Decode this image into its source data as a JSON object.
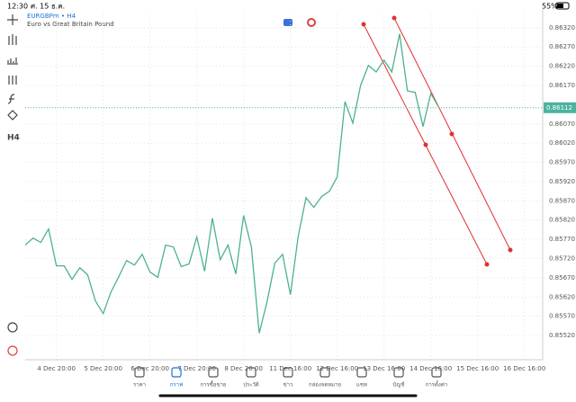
{
  "status_bar": {
    "time": "12:30",
    "date": "ศ. 15 ธ.ค.",
    "battery": "55%"
  },
  "header": {
    "symbol": "EURGBPm • H4",
    "description": "Euro vs Great Britain Pound"
  },
  "sidebar": {
    "timeframe": "H4"
  },
  "chart_data": {
    "type": "line",
    "color": "#4cb38a",
    "grid": true,
    "values": [
      0.85755,
      0.85773,
      0.85762,
      0.85797,
      0.85701,
      0.85701,
      0.85666,
      0.85696,
      0.85678,
      0.8561,
      0.85577,
      0.85633,
      0.85673,
      0.85715,
      0.85703,
      0.85731,
      0.85685,
      0.85671,
      0.85755,
      0.8575,
      0.85699,
      0.85706,
      0.85776,
      0.85687,
      0.85825,
      0.85717,
      0.85755,
      0.8568,
      0.85832,
      0.8575,
      0.85526,
      0.85607,
      0.85708,
      0.85731,
      0.85626,
      0.85778,
      0.85878,
      0.85853,
      0.85881,
      0.85895,
      0.85932,
      0.86128,
      0.86072,
      0.8617,
      0.86222,
      0.86205,
      0.86236,
      0.86205,
      0.86304,
      0.86156,
      0.86152,
      0.86063,
      0.86149,
      0.86114
    ],
    "ylim": [
      0.85457,
      0.86357
    ],
    "yticks": [
      {
        "value": 0.8632,
        "label": "0.86320"
      },
      {
        "value": 0.8627,
        "label": "0.86270"
      },
      {
        "value": 0.8622,
        "label": "0.86220"
      },
      {
        "value": 0.8617,
        "label": "0.86170"
      },
      {
        "value": 0.8607,
        "label": "0.86070"
      },
      {
        "value": 0.8602,
        "label": "0.86020"
      },
      {
        "value": 0.8597,
        "label": "0.85970"
      },
      {
        "value": 0.8592,
        "label": "0.85920"
      },
      {
        "value": 0.8587,
        "label": "0.85870"
      },
      {
        "value": 0.8582,
        "label": "0.85820"
      },
      {
        "value": 0.8577,
        "label": "0.85770"
      },
      {
        "value": 0.8572,
        "label": "0.85720"
      },
      {
        "value": 0.8567,
        "label": "0.85670"
      },
      {
        "value": 0.8562,
        "label": "0.85620"
      },
      {
        "value": 0.8557,
        "label": "0.85570"
      },
      {
        "value": 0.8552,
        "label": "0.85520"
      }
    ],
    "xlim": [
      0,
      66
    ],
    "xticks": [
      {
        "value": 4,
        "label": "4 Dec 20:00"
      },
      {
        "value": 10,
        "label": "5 Dec 20:00"
      },
      {
        "value": 16,
        "label": "6 Dec 20:00"
      },
      {
        "value": 22,
        "label": "7 Dec 20:00"
      },
      {
        "value": 28,
        "label": "8 Dec 20:00"
      },
      {
        "value": 34,
        "label": "11 Dec 16:00"
      },
      {
        "value": 40,
        "label": "12 Dec 16:00"
      },
      {
        "value": 46,
        "label": "13 Dec 16:00"
      },
      {
        "value": 52,
        "label": "14 Dec 16:00"
      },
      {
        "value": 58,
        "label": "15 Dec 16:00"
      },
      {
        "value": 64,
        "label": "16 Dec 16:00"
      }
    ],
    "current_price": 0.86112
  },
  "nav": {
    "items": [
      "ราคา",
      "กราฟ",
      "การซื้อขาย",
      "ประวัติ",
      "ข่าว",
      "กล่องจดหมาย",
      "แชท",
      "บัญชี",
      "การตั้งค่า"
    ]
  }
}
